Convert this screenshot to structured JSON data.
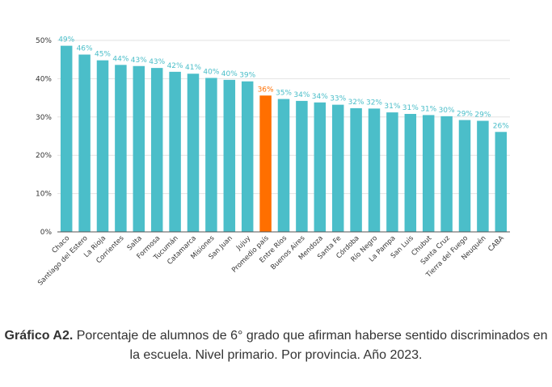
{
  "chart_data": {
    "type": "bar",
    "categories": [
      "Chaco",
      "Santiago del Estero",
      "La Rioja",
      "Corrientes",
      "Salta",
      "Formosa",
      "Tucumán",
      "Catamarca",
      "Misiones",
      "San Juan",
      "Jujuy",
      "Promedio país",
      "Entre Ríos",
      "Buenos Aires",
      "Mendoza",
      "Santa Fe",
      "Córdoba",
      "Río Negro",
      "La Pampa",
      "San Luis",
      "Chubut",
      "Santa Cruz",
      "Tierra del Fuego",
      "Neuquén",
      "CABA"
    ],
    "values": [
      48.6,
      46.3,
      44.8,
      43.6,
      43.3,
      42.8,
      41.8,
      41.3,
      40.2,
      39.7,
      39.3,
      35.6,
      34.7,
      34.2,
      33.8,
      33.2,
      32.3,
      32.2,
      31.2,
      30.8,
      30.5,
      30.2,
      29.2,
      29.0,
      26.1
    ],
    "data_labels": [
      "49%",
      "46%",
      "45%",
      "44%",
      "43%",
      "43%",
      "42%",
      "41%",
      "40%",
      "40%",
      "39%",
      "36%",
      "35%",
      "34%",
      "34%",
      "33%",
      "32%",
      "32%",
      "31%",
      "31%",
      "31%",
      "30%",
      "29%",
      "29%",
      "26%"
    ],
    "highlight_category": "Promedio país",
    "yticks": [
      "0%",
      "10%",
      "20%",
      "30%",
      "40%",
      "50%"
    ],
    "ylim": [
      0,
      50
    ],
    "grid": true,
    "colors": {
      "bar": "#4bbec9",
      "highlight": "#ff6f00",
      "grid": "#e2e2e2",
      "axis": "#555555"
    }
  },
  "caption": {
    "label": "Gráfico A2.",
    "text": " Porcentaje de alumnos de 6° grado que afirman haberse sentido discriminados en la escuela. Nivel primario. Por provincia. Año 2023."
  }
}
